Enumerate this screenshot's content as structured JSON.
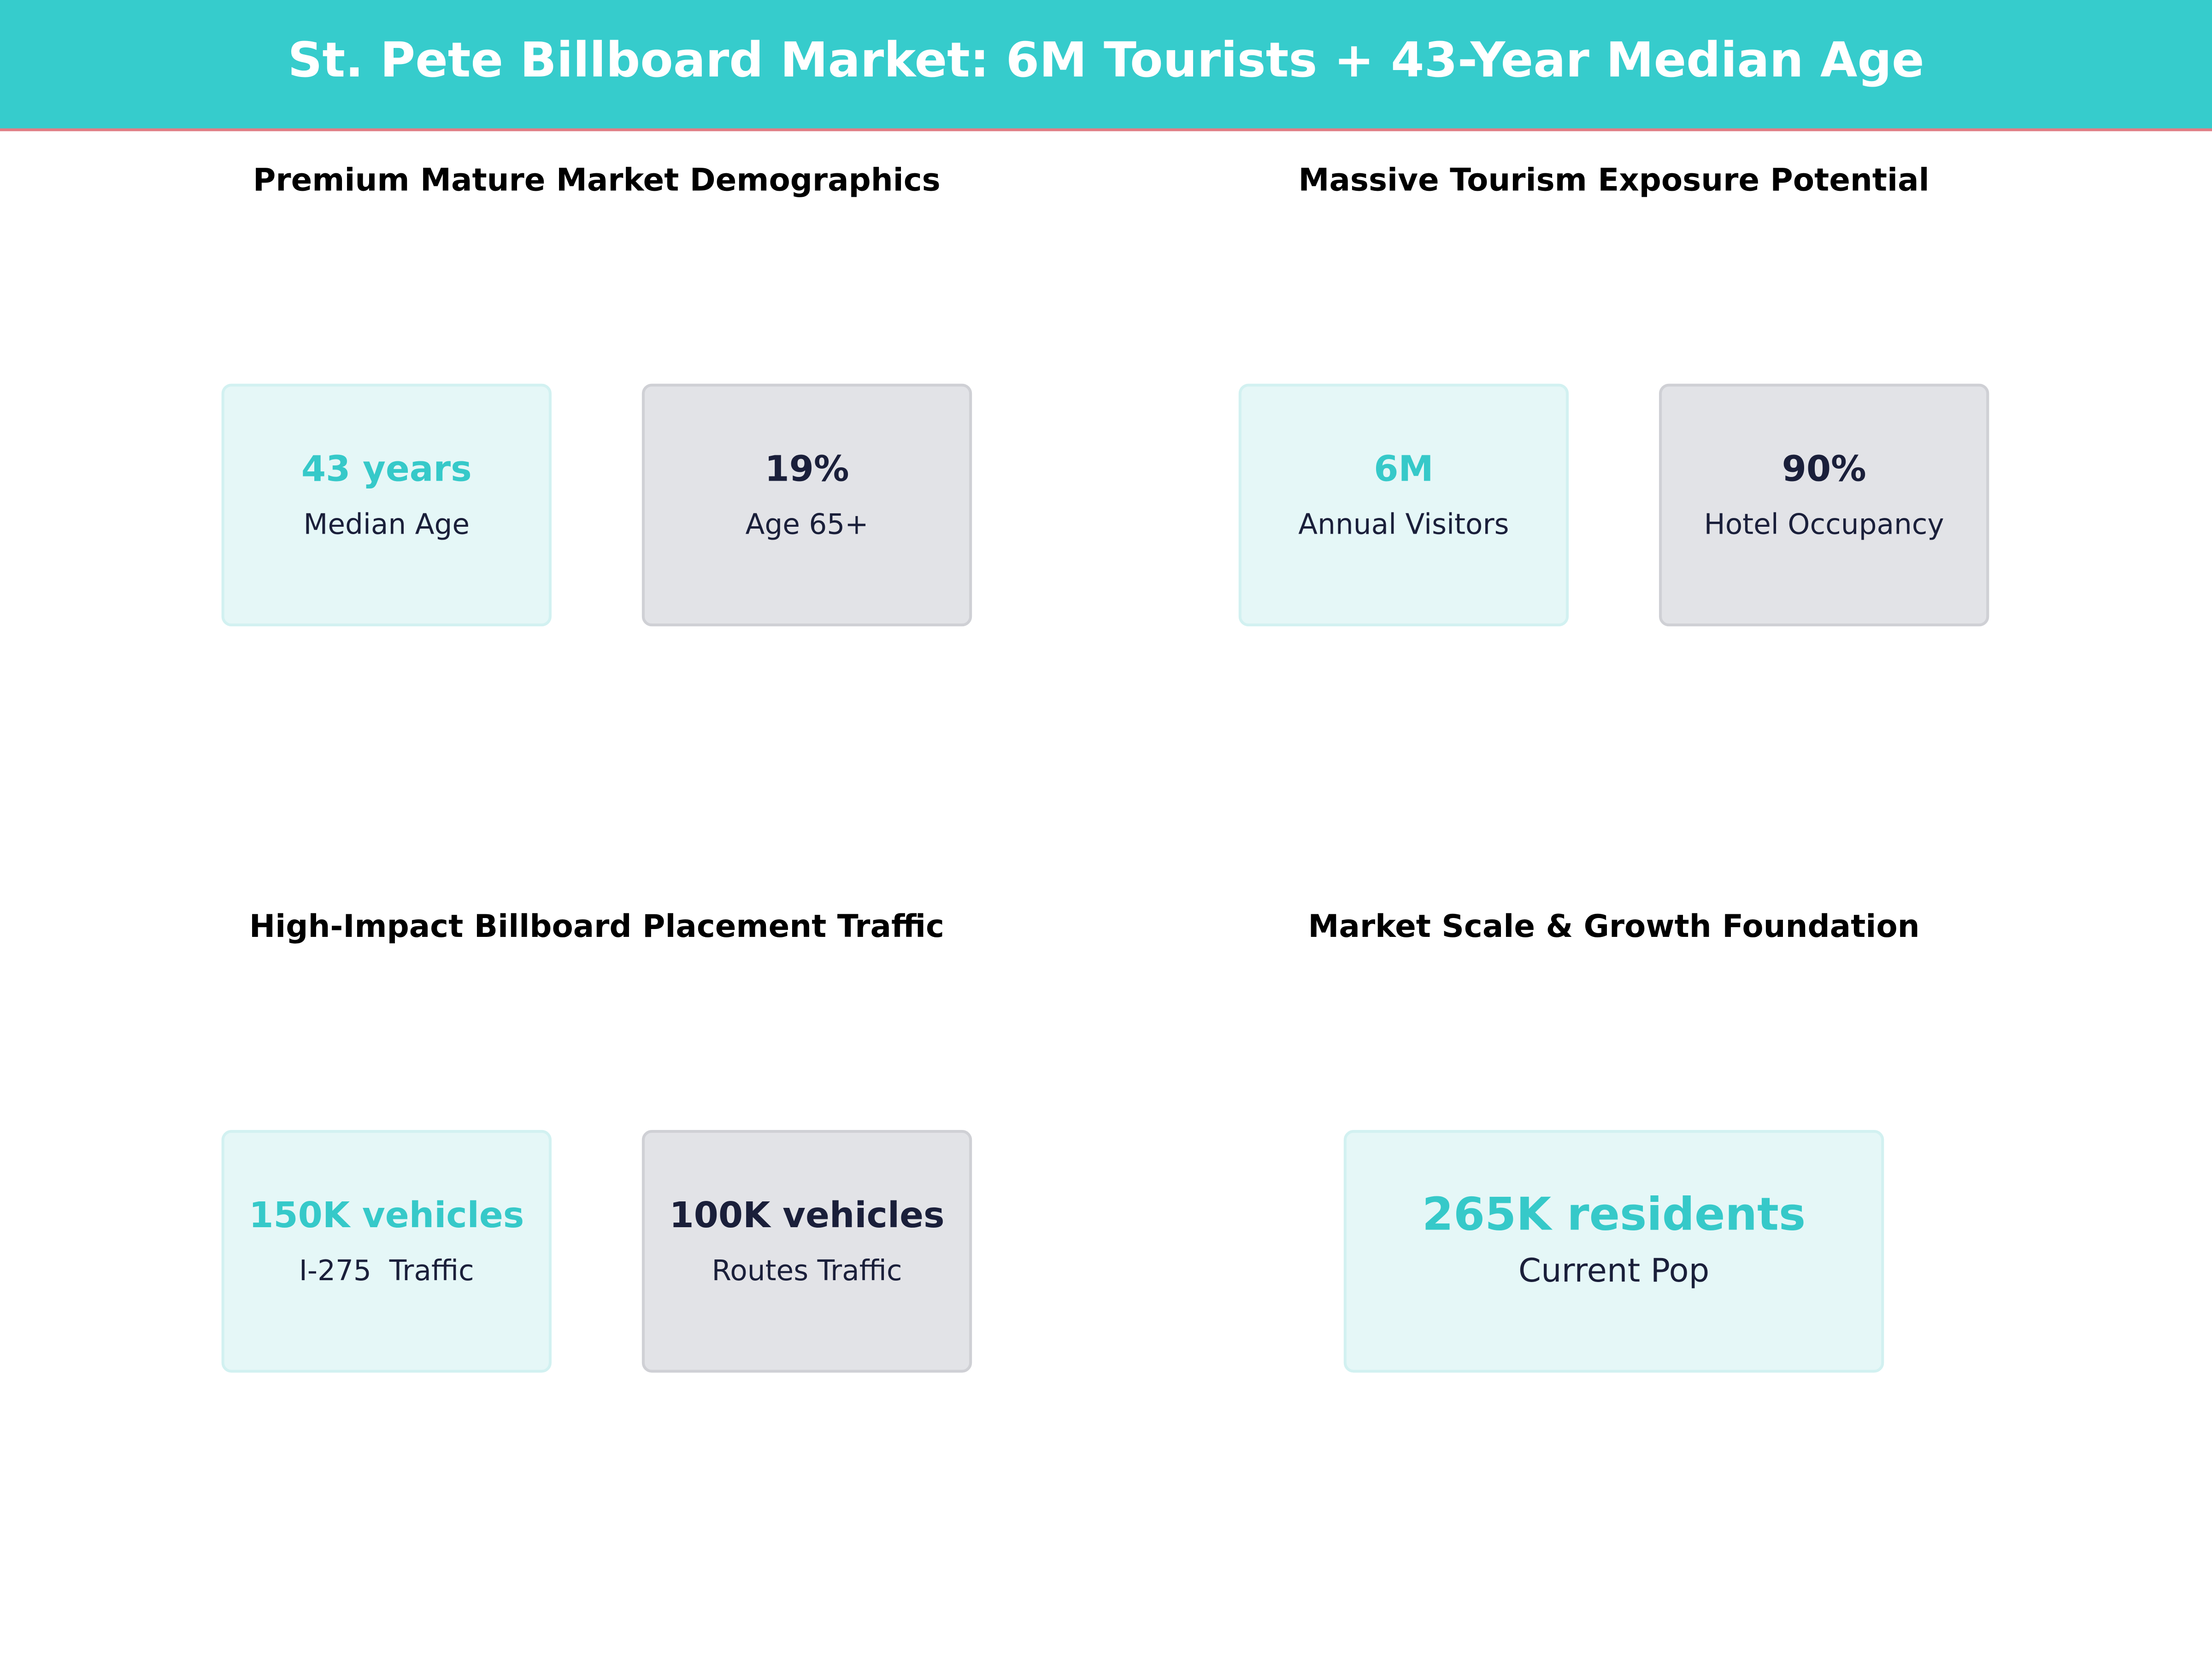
{
  "header": {
    "title": "St. Pete Billboard Market: 6M Tourists + 43-Year Median Age"
  },
  "panels": [
    {
      "title": "Premium Mature Market Demographics",
      "cards": [
        {
          "value": "43 years",
          "label": "Median Age"
        },
        {
          "value": "19%",
          "label": "Age 65+"
        }
      ]
    },
    {
      "title": "Massive Tourism Exposure Potential",
      "cards": [
        {
          "value": "6M",
          "label": "Annual Visitors"
        },
        {
          "value": "90%",
          "label": "Hotel Occupancy"
        }
      ]
    },
    {
      "title": "High-Impact Billboard Placement Traffic",
      "cards": [
        {
          "value": "150K vehicles",
          "label": "I-275  Traffic"
        },
        {
          "value": "100K vehicles",
          "label": "Routes Traffic"
        }
      ]
    },
    {
      "title": "Market Scale & Growth Foundation",
      "cards": [
        {
          "value": "265K residents",
          "label": "Current Pop"
        }
      ]
    }
  ]
}
